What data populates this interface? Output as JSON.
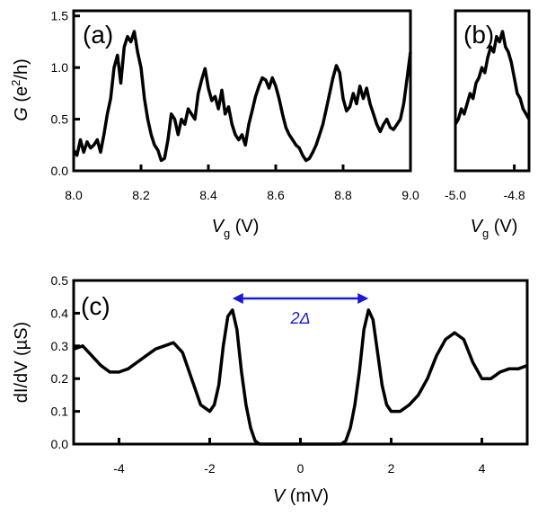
{
  "chart_data": [
    {
      "panel": "(a)",
      "type": "line",
      "xlabel": "V",
      "xlabel_sub": "g",
      "xlabel_unit": " (V)",
      "ylabel": "G",
      "ylabel_unit_open": " (e",
      "ylabel_unit_sup": "2",
      "ylabel_unit_close": "/h)",
      "xlim": [
        8.0,
        9.0
      ],
      "ylim": [
        0.0,
        1.55
      ],
      "xticks": [
        "8.0",
        "8.2",
        "8.4",
        "8.6",
        "8.8",
        "9.0"
      ],
      "yticks": [
        "0.0",
        "0.5",
        "1.0",
        "1.5"
      ],
      "series": [
        {
          "x": [
            8.0,
            8.01,
            8.02,
            8.03,
            8.04,
            8.05,
            8.06,
            8.07,
            8.08,
            8.09,
            8.1,
            8.11,
            8.12,
            8.13,
            8.14,
            8.15,
            8.16,
            8.17,
            8.18,
            8.19,
            8.2,
            8.21,
            8.22,
            8.23,
            8.24,
            8.25,
            8.26,
            8.27,
            8.28,
            8.29,
            8.3,
            8.31,
            8.32,
            8.33,
            8.34,
            8.35,
            8.36,
            8.37,
            8.38,
            8.39,
            8.4,
            8.41,
            8.42,
            8.43,
            8.44,
            8.45,
            8.46,
            8.47,
            8.48,
            8.49,
            8.5,
            8.51,
            8.52,
            8.53,
            8.54,
            8.55,
            8.56,
            8.57,
            8.58,
            8.59,
            8.6,
            8.61,
            8.62,
            8.63,
            8.64,
            8.65,
            8.66,
            8.67,
            8.68,
            8.69,
            8.7,
            8.71,
            8.72,
            8.73,
            8.74,
            8.75,
            8.76,
            8.77,
            8.78,
            8.79,
            8.8,
            8.81,
            8.82,
            8.83,
            8.84,
            8.85,
            8.86,
            8.87,
            8.88,
            8.89,
            8.9,
            8.91,
            8.92,
            8.93,
            8.94,
            8.95,
            8.96,
            8.97,
            8.98,
            8.99,
            9.0
          ],
          "y": [
            0.2,
            0.15,
            0.3,
            0.18,
            0.28,
            0.22,
            0.25,
            0.3,
            0.18,
            0.35,
            0.55,
            0.7,
            1.0,
            1.12,
            0.85,
            1.2,
            1.3,
            1.25,
            1.35,
            1.15,
            1.0,
            0.7,
            0.5,
            0.35,
            0.25,
            0.2,
            0.1,
            0.12,
            0.3,
            0.55,
            0.5,
            0.35,
            0.5,
            0.45,
            0.6,
            0.55,
            0.5,
            0.75,
            0.88,
            0.99,
            0.8,
            0.68,
            0.72,
            0.6,
            0.78,
            0.55,
            0.62,
            0.45,
            0.35,
            0.3,
            0.35,
            0.25,
            0.45,
            0.58,
            0.72,
            0.82,
            0.9,
            0.88,
            0.8,
            0.9,
            0.82,
            0.7,
            0.55,
            0.42,
            0.35,
            0.3,
            0.25,
            0.22,
            0.15,
            0.1,
            0.12,
            0.18,
            0.25,
            0.35,
            0.45,
            0.6,
            0.75,
            0.9,
            1.02,
            0.95,
            0.7,
            0.58,
            0.62,
            0.75,
            0.65,
            0.82,
            0.7,
            0.8,
            0.65,
            0.55,
            0.45,
            0.38,
            0.45,
            0.5,
            0.42,
            0.4,
            0.45,
            0.5,
            0.65,
            0.9,
            1.15
          ]
        }
      ]
    },
    {
      "panel": "(b)",
      "type": "line",
      "xlabel": "V",
      "xlabel_sub": "g",
      "xlabel_unit": " (V)",
      "xlim": [
        -5.0,
        -4.75
      ],
      "ylim": [
        0.0,
        1.55
      ],
      "xticks": [
        "-5.0",
        "-4.8"
      ],
      "series": [
        {
          "x": [
            -5.0,
            -4.99,
            -4.98,
            -4.97,
            -4.96,
            -4.95,
            -4.94,
            -4.93,
            -4.92,
            -4.91,
            -4.9,
            -4.89,
            -4.88,
            -4.87,
            -4.86,
            -4.85,
            -4.84,
            -4.83,
            -4.82,
            -4.81,
            -4.8,
            -4.79,
            -4.78,
            -4.77,
            -4.76,
            -4.75
          ],
          "y": [
            0.45,
            0.5,
            0.6,
            0.55,
            0.65,
            0.75,
            0.7,
            0.85,
            0.9,
            1.0,
            0.95,
            1.1,
            1.2,
            1.15,
            1.3,
            1.25,
            1.35,
            1.2,
            1.15,
            1.05,
            0.9,
            0.75,
            0.7,
            0.6,
            0.55,
            0.5
          ]
        }
      ]
    },
    {
      "panel": "(c)",
      "type": "line",
      "xlabel": "V",
      "xlabel_unit": " (mV)",
      "ylabel": "dI/dV",
      "ylabel_unit": " (µS)",
      "xlim": [
        -5.0,
        5.0
      ],
      "ylim": [
        0.0,
        0.5
      ],
      "xticks": [
        "-4",
        "-2",
        "0",
        "2",
        "4"
      ],
      "xtick_values": [
        -4,
        -2,
        0,
        2,
        4
      ],
      "yticks": [
        "0.0",
        "0.1",
        "0.2",
        "0.3",
        "0.4",
        "0.5"
      ],
      "annotation": "2Δ",
      "annotation_x_range": [
        -1.5,
        1.5
      ],
      "annotation_y": 0.415,
      "series": [
        {
          "x": [
            -5.0,
            -4.8,
            -4.6,
            -4.4,
            -4.2,
            -4.0,
            -3.8,
            -3.6,
            -3.4,
            -3.2,
            -3.0,
            -2.8,
            -2.6,
            -2.4,
            -2.2,
            -2.0,
            -1.9,
            -1.8,
            -1.7,
            -1.6,
            -1.5,
            -1.4,
            -1.3,
            -1.2,
            -1.1,
            -1.0,
            -0.9,
            -0.8,
            -0.5,
            0.0,
            0.5,
            0.8,
            0.9,
            1.0,
            1.1,
            1.2,
            1.3,
            1.4,
            1.5,
            1.6,
            1.7,
            1.8,
            1.9,
            2.0,
            2.2,
            2.4,
            2.6,
            2.8,
            3.0,
            3.2,
            3.4,
            3.6,
            3.8,
            4.0,
            4.2,
            4.4,
            4.6,
            4.8,
            5.0
          ],
          "y": [
            0.29,
            0.3,
            0.27,
            0.24,
            0.22,
            0.22,
            0.23,
            0.25,
            0.27,
            0.29,
            0.3,
            0.31,
            0.28,
            0.2,
            0.12,
            0.1,
            0.12,
            0.18,
            0.3,
            0.39,
            0.41,
            0.35,
            0.22,
            0.12,
            0.05,
            0.01,
            0.0,
            0.0,
            0.0,
            0.0,
            0.0,
            0.0,
            0.0,
            0.01,
            0.05,
            0.12,
            0.22,
            0.35,
            0.41,
            0.38,
            0.28,
            0.18,
            0.12,
            0.1,
            0.1,
            0.12,
            0.15,
            0.2,
            0.27,
            0.32,
            0.34,
            0.32,
            0.25,
            0.2,
            0.2,
            0.22,
            0.23,
            0.23,
            0.24
          ]
        }
      ]
    }
  ]
}
